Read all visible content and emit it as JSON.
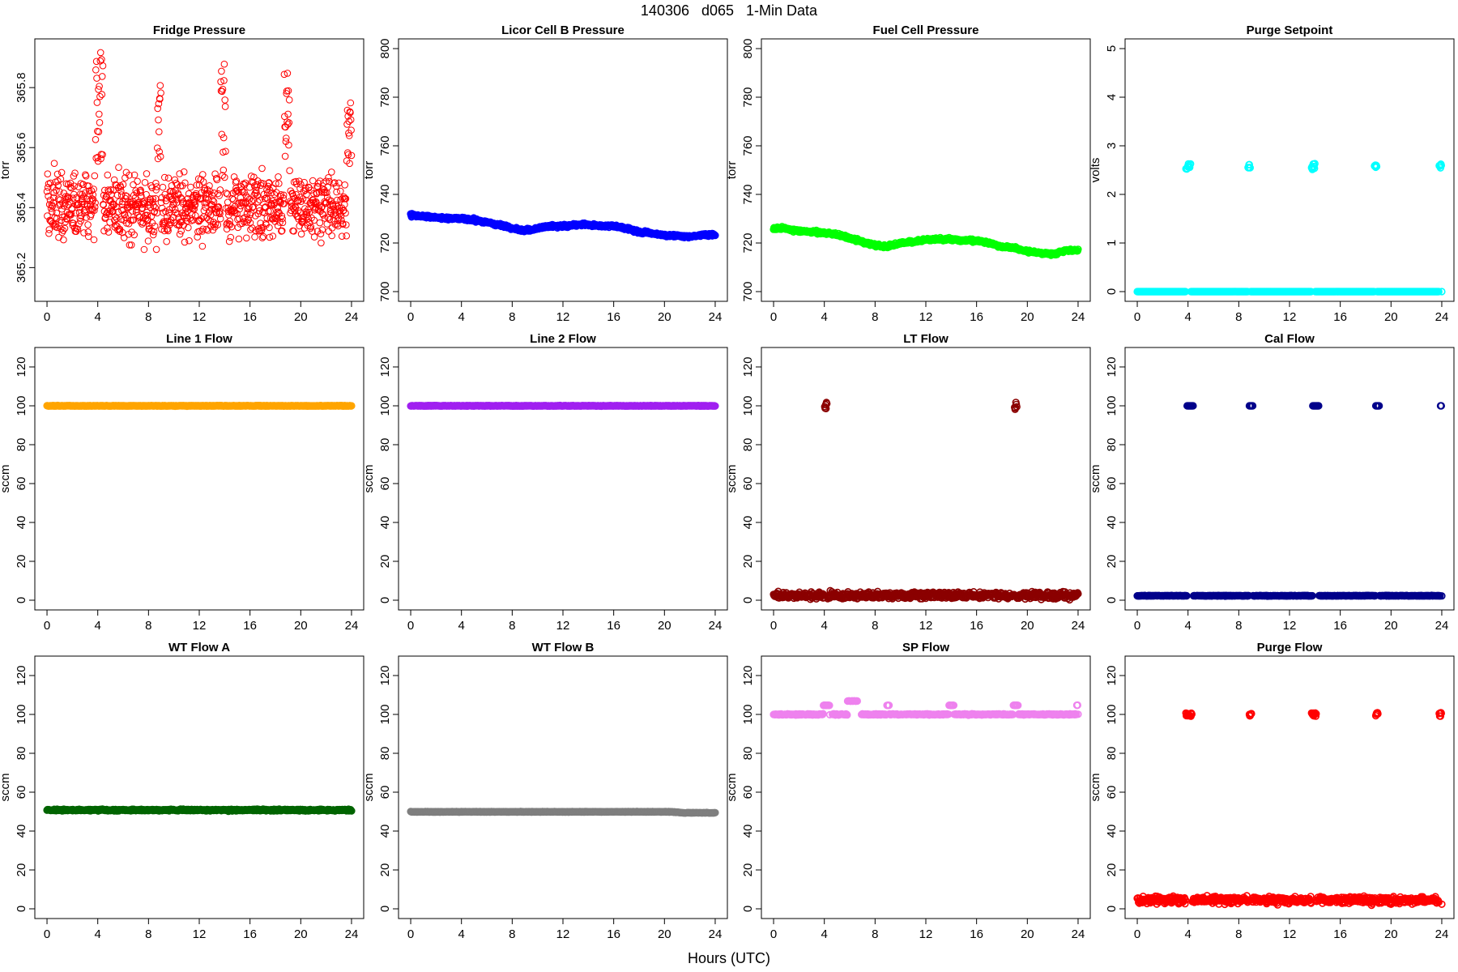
{
  "title": "140306   d065   1-Min Data",
  "xlabel": "Hours (UTC)",
  "chart_data": [
    {
      "type": "scatter",
      "title": "Fridge Pressure",
      "ylabel": "torr",
      "color": "#ff0000",
      "xlim": [
        0,
        24
      ],
      "xticks": [
        "0",
        "4",
        "8",
        "12",
        "16",
        "20",
        "24"
      ],
      "ylim": [
        365.12,
        365.93
      ],
      "yticks": [
        "365.2",
        "365.4",
        "365.6",
        "365.8"
      ],
      "step_minutes": 1.5,
      "sparse": true,
      "trend": {
        "x": [
          0,
          24
        ],
        "y": [
          365.4,
          365.4
        ]
      },
      "noise_sd": 0.075,
      "spikes": [
        {
          "x": [
            3.8,
            4.4
          ],
          "y": [
            365.55,
            365.92
          ]
        },
        {
          "x": [
            8.7,
            9.0
          ],
          "y": [
            365.55,
            365.82
          ]
        },
        {
          "x": [
            13.7,
            14.1
          ],
          "y": [
            365.5,
            365.88
          ]
        },
        {
          "x": [
            18.7,
            19.1
          ],
          "y": [
            365.55,
            365.86
          ]
        },
        {
          "x": [
            23.6,
            24.0
          ],
          "y": [
            365.5,
            365.8
          ]
        }
      ]
    },
    {
      "type": "scatter",
      "title": "Licor Cell B Pressure",
      "ylabel": "torr",
      "color": "#0000ff",
      "xlim": [
        0,
        24
      ],
      "xticks": [
        "0",
        "4",
        "8",
        "12",
        "16",
        "20",
        "24"
      ],
      "ylim": [
        700,
        800
      ],
      "yticks": [
        "700",
        "720",
        "740",
        "760",
        "780",
        "800"
      ],
      "step_minutes": 2,
      "trend": {
        "x": [
          0,
          1,
          2,
          3,
          4,
          5,
          6,
          7,
          8,
          9,
          10,
          11,
          12,
          13,
          14,
          15,
          16,
          17,
          18,
          19,
          20,
          21,
          22,
          23,
          24
        ],
        "y": [
          731.5,
          731,
          730.5,
          730,
          730,
          729.5,
          728.5,
          727.5,
          726,
          725,
          726,
          727,
          727,
          727.5,
          727.5,
          727,
          727,
          726,
          724.5,
          724,
          723,
          723,
          722.5,
          723.5,
          723.5
        ]
      },
      "noise_sd": 0.4,
      "spikes": []
    },
    {
      "type": "scatter",
      "title": "Fuel Cell Pressure",
      "ylabel": "torr",
      "color": "#00ff00",
      "xlim": [
        0,
        24
      ],
      "xticks": [
        "0",
        "4",
        "8",
        "12",
        "16",
        "20",
        "24"
      ],
      "ylim": [
        700,
        800
      ],
      "yticks": [
        "700",
        "720",
        "740",
        "760",
        "780",
        "800"
      ],
      "step_minutes": 2,
      "trend": {
        "x": [
          0,
          1,
          2,
          3,
          4,
          5,
          6,
          7,
          8,
          9,
          10,
          11,
          12,
          13,
          14,
          15,
          16,
          17,
          18,
          19,
          20,
          21,
          22,
          23,
          24
        ],
        "y": [
          726,
          725.8,
          725,
          724.5,
          724.2,
          723.5,
          722,
          720.5,
          719,
          718.5,
          720,
          720.5,
          721.3,
          721.5,
          721.5,
          721,
          721,
          720,
          718.5,
          718,
          716.5,
          716,
          715.5,
          717,
          717
        ]
      },
      "noise_sd": 0.4,
      "spikes": []
    },
    {
      "type": "scatter",
      "title": "Purge Setpoint",
      "ylabel": "volts",
      "color": "#00ffff",
      "xlim": [
        0,
        24
      ],
      "xticks": [
        "0",
        "4",
        "8",
        "12",
        "16",
        "20",
        "24"
      ],
      "ylim": [
        0,
        5
      ],
      "yticks": [
        "0",
        "1",
        "2",
        "3",
        "4",
        "5"
      ],
      "step_minutes": 2,
      "trend": {
        "x": [
          0,
          24
        ],
        "y": [
          0,
          0
        ]
      },
      "noise_sd": 0,
      "spikes": [
        {
          "x": [
            3.8,
            4.2
          ],
          "y": [
            2.52,
            2.64
          ]
        },
        {
          "x": [
            8.7,
            8.9
          ],
          "y": [
            2.54,
            2.62
          ]
        },
        {
          "x": [
            13.7,
            14.0
          ],
          "y": [
            2.5,
            2.65
          ]
        },
        {
          "x": [
            18.7,
            18.9
          ],
          "y": [
            2.54,
            2.62
          ]
        },
        {
          "x": [
            23.8,
            24.0
          ],
          "y": [
            2.52,
            2.65
          ]
        }
      ]
    },
    {
      "type": "scatter",
      "title": "Line 1 Flow",
      "ylabel": "sccm",
      "color": "#ffa500",
      "xlim": [
        0,
        24
      ],
      "xticks": [
        "0",
        "4",
        "8",
        "12",
        "16",
        "20",
        "24"
      ],
      "ylim": [
        0,
        125
      ],
      "yticks": [
        "0",
        "20",
        "40",
        "60",
        "80",
        "100",
        "120"
      ],
      "step_minutes": 2,
      "trend": {
        "x": [
          0,
          24
        ],
        "y": [
          100,
          100
        ]
      },
      "noise_sd": 0.1,
      "spikes": []
    },
    {
      "type": "scatter",
      "title": "Line 2 Flow",
      "ylabel": "sccm",
      "color": "#a020f0",
      "xlim": [
        0,
        24
      ],
      "xticks": [
        "0",
        "4",
        "8",
        "12",
        "16",
        "20",
        "24"
      ],
      "ylim": [
        0,
        125
      ],
      "yticks": [
        "0",
        "20",
        "40",
        "60",
        "80",
        "100",
        "120"
      ],
      "step_minutes": 2,
      "trend": {
        "x": [
          0,
          24
        ],
        "y": [
          100,
          100
        ]
      },
      "noise_sd": 0.1,
      "spikes": []
    },
    {
      "type": "scatter",
      "title": "LT Flow",
      "ylabel": "sccm",
      "color": "#8b0000",
      "xlim": [
        0,
        24
      ],
      "xticks": [
        "0",
        "4",
        "8",
        "12",
        "16",
        "20",
        "24"
      ],
      "ylim": [
        0,
        125
      ],
      "yticks": [
        "0",
        "20",
        "40",
        "60",
        "80",
        "100",
        "120"
      ],
      "step_minutes": 2,
      "trend": {
        "x": [
          0,
          24
        ],
        "y": [
          2.5,
          2.5
        ]
      },
      "noise_sd": 1.2,
      "spikes": [
        {
          "x": [
            4.0,
            4.2
          ],
          "y": [
            98,
            102
          ]
        },
        {
          "x": [
            19.0,
            19.2
          ],
          "y": [
            98,
            102
          ]
        }
      ]
    },
    {
      "type": "scatter",
      "title": "Cal Flow",
      "ylabel": "sccm",
      "color": "#00008b",
      "xlim": [
        0,
        24
      ],
      "xticks": [
        "0",
        "4",
        "8",
        "12",
        "16",
        "20",
        "24"
      ],
      "ylim": [
        0,
        125
      ],
      "yticks": [
        "0",
        "20",
        "40",
        "60",
        "80",
        "100",
        "120"
      ],
      "step_minutes": 2,
      "trend": {
        "x": [
          0,
          24
        ],
        "y": [
          2.3,
          2.3
        ]
      },
      "noise_sd": 0.1,
      "spikes": [
        {
          "x": [
            3.9,
            4.4
          ],
          "y": [
            100,
            100
          ]
        },
        {
          "x": [
            8.8,
            9.1
          ],
          "y": [
            100,
            100
          ]
        },
        {
          "x": [
            13.8,
            14.3
          ],
          "y": [
            100,
            100
          ]
        },
        {
          "x": [
            18.8,
            19.1
          ],
          "y": [
            100,
            100
          ]
        },
        {
          "x": [
            23.9,
            24.0
          ],
          "y": [
            100,
            100
          ]
        }
      ]
    },
    {
      "type": "scatter",
      "title": "WT Flow A",
      "ylabel": "sccm",
      "color": "#006400",
      "xlim": [
        0,
        24
      ],
      "xticks": [
        "0",
        "4",
        "8",
        "12",
        "16",
        "20",
        "24"
      ],
      "ylim": [
        0,
        125
      ],
      "yticks": [
        "0",
        "20",
        "40",
        "60",
        "80",
        "100",
        "120"
      ],
      "step_minutes": 2,
      "trend": {
        "x": [
          0,
          24
        ],
        "y": [
          50.8,
          50.8
        ]
      },
      "noise_sd": 0.3,
      "spikes": []
    },
    {
      "type": "scatter",
      "title": "WT Flow B",
      "ylabel": "sccm",
      "color": "#7f7f7f",
      "xlim": [
        0,
        24
      ],
      "xticks": [
        "0",
        "4",
        "8",
        "12",
        "16",
        "20",
        "24"
      ],
      "ylim": [
        0,
        125
      ],
      "yticks": [
        "0",
        "20",
        "40",
        "60",
        "80",
        "100",
        "120"
      ],
      "step_minutes": 2,
      "trend": {
        "x": [
          0,
          20.5,
          21.5,
          24
        ],
        "y": [
          49.9,
          49.9,
          49.4,
          49.4
        ]
      },
      "noise_sd": 0.1,
      "spikes": []
    },
    {
      "type": "scatter",
      "title": "SP Flow",
      "ylabel": "sccm",
      "color": "#ee82ee",
      "xlim": [
        0,
        24
      ],
      "xticks": [
        "0",
        "4",
        "8",
        "12",
        "16",
        "20",
        "24"
      ],
      "ylim": [
        0,
        125
      ],
      "yticks": [
        "0",
        "20",
        "40",
        "60",
        "80",
        "100",
        "120"
      ],
      "step_minutes": 2,
      "trend": {
        "x": [
          0,
          24
        ],
        "y": [
          100,
          100
        ]
      },
      "noise_sd": 0.2,
      "spikes": [
        {
          "x": [
            3.9,
            4.4
          ],
          "y": [
            104.6,
            104.8
          ]
        },
        {
          "x": [
            4.45,
            4.6
          ],
          "y": null
        },
        {
          "x": [
            5.8,
            6.6
          ],
          "y": [
            106.8,
            107
          ]
        },
        {
          "x": [
            6.6,
            6.9
          ],
          "y": null
        },
        {
          "x": [
            8.9,
            9.1
          ],
          "y": [
            104.6,
            104.8
          ]
        },
        {
          "x": [
            13.8,
            14.2
          ],
          "y": [
            104.6,
            104.8
          ]
        },
        {
          "x": [
            18.9,
            19.3
          ],
          "y": [
            104.6,
            104.8
          ]
        },
        {
          "x": [
            23.9,
            24.0
          ],
          "y": [
            104.6,
            104.8
          ]
        }
      ]
    },
    {
      "type": "scatter",
      "title": "Purge Flow",
      "ylabel": "sccm",
      "color": "#ff0000",
      "xlim": [
        0,
        24
      ],
      "xticks": [
        "0",
        "4",
        "8",
        "12",
        "16",
        "20",
        "24"
      ],
      "ylim": [
        0,
        125
      ],
      "yticks": [
        "0",
        "20",
        "40",
        "60",
        "80",
        "100",
        "120"
      ],
      "step_minutes": 2,
      "trend": {
        "x": [
          0,
          24
        ],
        "y": [
          4.5,
          4.5
        ]
      },
      "noise_sd": 1.3,
      "spikes": [
        {
          "x": [
            3.8,
            4.3
          ],
          "y": [
            99,
            101
          ]
        },
        {
          "x": [
            8.8,
            9.0
          ],
          "y": [
            99,
            101
          ]
        },
        {
          "x": [
            13.7,
            14.1
          ],
          "y": [
            99,
            101
          ]
        },
        {
          "x": [
            18.8,
            19.0
          ],
          "y": [
            99,
            101
          ]
        },
        {
          "x": [
            23.8,
            24.0
          ],
          "y": [
            99,
            101
          ]
        }
      ]
    }
  ]
}
